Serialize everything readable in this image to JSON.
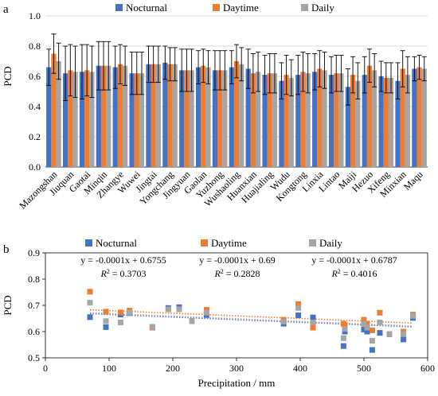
{
  "chart_data": [
    {
      "panel": "a",
      "type": "bar",
      "ylabel": "PCD",
      "ylim": [
        0,
        1.0
      ],
      "yticks": [
        "0.0",
        "0.2",
        "0.4",
        "0.6",
        "0.8",
        "1.0"
      ],
      "grid": true,
      "legend_position": "top",
      "categories": [
        "Mazongshan",
        "Jiuquan",
        "Gaotai",
        "Minqin",
        "Zhangye",
        "Wuwei",
        "Jingtai",
        "Yongchang",
        "Jingyuan",
        "Gaolan",
        "Yuzhong",
        "Wushaoling",
        "Huanxian",
        "Huajialing",
        "Wudu",
        "Kongtong",
        "Linxia",
        "Lintao",
        "Maiji",
        "Hezuo",
        "Xifeng",
        "Minxian",
        "Maqu"
      ],
      "series": [
        {
          "name": "Nocturnal",
          "color": "#4472C4",
          "values": [
            0.66,
            0.62,
            0.63,
            0.67,
            0.66,
            0.62,
            0.68,
            0.69,
            0.64,
            0.66,
            0.64,
            0.66,
            0.65,
            0.61,
            0.57,
            0.61,
            0.63,
            0.61,
            0.53,
            0.61,
            0.6,
            0.57,
            0.65
          ],
          "errors": [
            0.12,
            0.18,
            0.18,
            0.16,
            0.14,
            0.14,
            0.12,
            0.11,
            0.14,
            0.11,
            0.13,
            0.11,
            0.13,
            0.13,
            0.12,
            0.13,
            0.12,
            0.12,
            0.12,
            0.12,
            0.1,
            0.12,
            0.08
          ]
        },
        {
          "name": "Daytime",
          "color": "#ED7D31",
          "values": [
            0.75,
            0.64,
            0.64,
            0.67,
            0.68,
            0.62,
            0.68,
            0.68,
            0.64,
            0.67,
            0.64,
            0.7,
            0.62,
            0.62,
            0.61,
            0.63,
            0.65,
            0.62,
            0.61,
            0.67,
            0.59,
            0.65,
            0.66
          ],
          "errors": [
            0.13,
            0.17,
            0.17,
            0.16,
            0.13,
            0.14,
            0.12,
            0.11,
            0.14,
            0.11,
            0.13,
            0.11,
            0.13,
            0.13,
            0.13,
            0.13,
            0.12,
            0.12,
            0.12,
            0.11,
            0.1,
            0.12,
            0.08
          ]
        },
        {
          "name": "Daily",
          "color": "#A5A5A5",
          "values": [
            0.7,
            0.63,
            0.63,
            0.67,
            0.67,
            0.62,
            0.68,
            0.68,
            0.64,
            0.66,
            0.64,
            0.68,
            0.63,
            0.62,
            0.59,
            0.62,
            0.64,
            0.62,
            0.57,
            0.64,
            0.59,
            0.61,
            0.65
          ],
          "errors": [
            0.12,
            0.17,
            0.17,
            0.16,
            0.13,
            0.14,
            0.12,
            0.11,
            0.14,
            0.11,
            0.13,
            0.11,
            0.13,
            0.13,
            0.12,
            0.13,
            0.12,
            0.12,
            0.12,
            0.11,
            0.1,
            0.12,
            0.08
          ]
        }
      ]
    },
    {
      "panel": "b",
      "type": "scatter",
      "xlabel": "Precipitation / mm",
      "ylabel": "PCD",
      "xlim": [
        0,
        600
      ],
      "ylim": [
        0.5,
        0.9
      ],
      "xticks": [
        "0",
        "100",
        "200",
        "300",
        "400",
        "500",
        "600"
      ],
      "yticks": [
        "0.5",
        "0.6",
        "0.7",
        "0.8",
        "0.9"
      ],
      "grid": false,
      "legend_position": "top",
      "series": [
        {
          "name": "Nocturnal",
          "color": "#4472C4",
          "points": [
            [
              70,
              0.655
            ],
            [
              95,
              0.617
            ],
            [
              118,
              0.665
            ],
            [
              132,
              0.67
            ],
            [
              168,
              0.617
            ],
            [
              193,
              0.69
            ],
            [
              210,
              0.693
            ],
            [
              230,
              0.64
            ],
            [
              253,
              0.663
            ],
            [
              374,
              0.63
            ],
            [
              397,
              0.662
            ],
            [
              420,
              0.654
            ],
            [
              468,
              0.545
            ],
            [
              470,
              0.6
            ],
            [
              500,
              0.608
            ],
            [
              505,
              0.6
            ],
            [
              513,
              0.53
            ],
            [
              525,
              0.595
            ],
            [
              540,
              0.59
            ],
            [
              562,
              0.57
            ],
            [
              577,
              0.652
            ]
          ],
          "fit": {
            "slope": -0.0001,
            "intercept": 0.6755,
            "equation": "y = -0.0001x + 0.6755",
            "r2": "= 0.3703"
          }
        },
        {
          "name": "Daytime",
          "color": "#ED7D31",
          "points": [
            [
              70,
              0.752
            ],
            [
              95,
              0.676
            ],
            [
              118,
              0.673
            ],
            [
              132,
              0.68
            ],
            [
              168,
              0.615
            ],
            [
              193,
              0.685
            ],
            [
              210,
              0.685
            ],
            [
              230,
              0.64
            ],
            [
              253,
              0.683
            ],
            [
              374,
              0.645
            ],
            [
              397,
              0.705
            ],
            [
              420,
              0.615
            ],
            [
              468,
              0.63
            ],
            [
              470,
              0.625
            ],
            [
              500,
              0.645
            ],
            [
              505,
              0.63
            ],
            [
              513,
              0.605
            ],
            [
              525,
              0.672
            ],
            [
              540,
              0.59
            ],
            [
              562,
              0.6
            ],
            [
              577,
              0.665
            ]
          ],
          "fit": {
            "slope": -0.0001,
            "intercept": 0.69,
            "equation": "y = -0.0001x + 0.69",
            "r2": "= 0.2828"
          }
        },
        {
          "name": "Daily",
          "color": "#A5A5A5",
          "points": [
            [
              70,
              0.71
            ],
            [
              95,
              0.64
            ],
            [
              118,
              0.635
            ],
            [
              132,
              0.672
            ],
            [
              168,
              0.618
            ],
            [
              193,
              0.685
            ],
            [
              210,
              0.685
            ],
            [
              230,
              0.64
            ],
            [
              253,
              0.672
            ],
            [
              374,
              0.638
            ],
            [
              397,
              0.69
            ],
            [
              420,
              0.635
            ],
            [
              468,
              0.575
            ],
            [
              470,
              0.61
            ],
            [
              500,
              0.63
            ],
            [
              505,
              0.615
            ],
            [
              513,
              0.565
            ],
            [
              525,
              0.635
            ],
            [
              540,
              0.59
            ],
            [
              562,
              0.59
            ],
            [
              577,
              0.66
            ]
          ],
          "fit": {
            "slope": -0.0001,
            "intercept": 0.6787,
            "equation": "y = -0.0001x + 0.6787",
            "r2": "= 0.4016"
          }
        }
      ]
    }
  ]
}
